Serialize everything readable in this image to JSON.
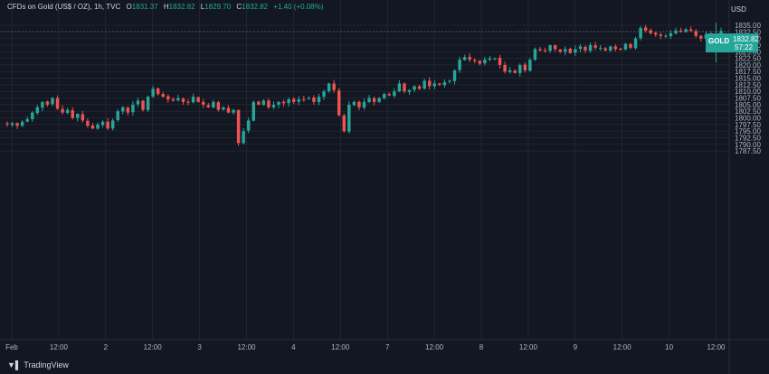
{
  "header": {
    "instrument": "CFDs on Gold (US$ / OZ), 1h, TVC",
    "open_label": "O",
    "open": "1831.37",
    "high_label": "H",
    "high": "1832.82",
    "low_label": "L",
    "low": "1829.70",
    "close_label": "C",
    "close": "1832.82",
    "change": "+1.40 (+0.08%)"
  },
  "currency": "USD",
  "price_tag": {
    "symbol": "GOLD",
    "price": "1832.82",
    "countdown": "57:22"
  },
  "brand": {
    "name": "TradingView",
    "logo": "tradingview-logo-icon"
  },
  "colors": {
    "background": "#131722",
    "up": "#26a69a",
    "down": "#ef5350",
    "grid": "#2a2e39",
    "text": "#b2b5be"
  },
  "chart_data": {
    "type": "candlestick",
    "title": "CFDs on Gold (US$ / OZ), 1h, TVC",
    "ylim": [
      1787.5,
      1836.5
    ],
    "y_ticks": [
      "1835.00",
      "1832.50",
      "1830.00",
      "1827.50",
      "1825.00",
      "1822.50",
      "1820.00",
      "1817.50",
      "1815.00",
      "1812.50",
      "1810.00",
      "1807.50",
      "1805.00",
      "1802.50",
      "1800.00",
      "1797.50",
      "1795.00",
      "1792.50",
      "1790.00",
      "1787.50"
    ],
    "x_ticks": [
      "Feb",
      "12:00",
      "2",
      "12:00",
      "3",
      "12:00",
      "4",
      "12:00",
      "7",
      "12:00",
      "8",
      "12:00",
      "9",
      "12:00",
      "10",
      "12:00"
    ],
    "last_price": 1832.82,
    "path": [
      1797.5,
      1798,
      1797,
      1798.5,
      1799.5,
      1802,
      1804,
      1806,
      1805,
      1807.5,
      1803.5,
      1802,
      1803,
      1800,
      1801.5,
      1799,
      1797,
      1796,
      1797.5,
      1798.5,
      1796,
      1799,
      1802.5,
      1804,
      1802,
      1805,
      1806.5,
      1803,
      1808,
      1811,
      1809,
      1808,
      1807,
      1806.5,
      1807.5,
      1806,
      1806,
      1808,
      1806,
      1805,
      1804,
      1806,
      1803,
      1804,
      1802,
      1803,
      1790.5,
      1795,
      1799,
      1806,
      1805,
      1806.5,
      1804,
      1805,
      1806,
      1805.5,
      1807,
      1806,
      1807,
      1807,
      1807.5,
      1806,
      1808,
      1810,
      1813,
      1810.5,
      1801,
      1795,
      1805,
      1806,
      1804,
      1806,
      1807.5,
      1806,
      1807.5,
      1809,
      1808.5,
      1810,
      1813,
      1810,
      1810.5,
      1812,
      1811,
      1814,
      1812,
      1813,
      1812.5,
      1813.5,
      1814,
      1818,
      1822,
      1823,
      1822,
      1821.5,
      1820.5,
      1822,
      1822.5,
      1822.5,
      1820,
      1817.5,
      1818,
      1817,
      1820,
      1818,
      1822,
      1826,
      1825.5,
      1825.5,
      1827.5,
      1826,
      1825,
      1826,
      1824.5,
      1826,
      1827,
      1825.5,
      1827.5,
      1826.5,
      1826.5,
      1825.5,
      1827,
      1826,
      1826,
      1828,
      1826.5,
      1830,
      1834,
      1833,
      1832,
      1831.5,
      1831,
      1831,
      1832,
      1833,
      1832.5,
      1833.5,
      1833,
      1831,
      1830,
      1831.5,
      1830.5,
      1831.37,
      1832.82
    ]
  }
}
